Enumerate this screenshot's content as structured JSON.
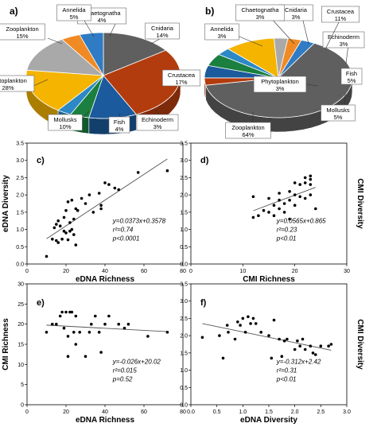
{
  "figure": {
    "colors": {
      "zooplankton": "#5f5f5f",
      "phytoplankton": "#b33c0e",
      "mollusks": "#1b5a9c",
      "fish": "#1a7f3f",
      "echinoderm": "#2c89c5",
      "crustacea": "#f4b400",
      "cnidaria": "#a9a9a9",
      "chaetognatha": "#f08a24",
      "annelida": "#2f7bc4",
      "points": "#000000",
      "fit_line": "#555555"
    }
  },
  "chart_data": [
    {
      "type": "pie",
      "panel": "a)",
      "style": "3d",
      "slices": [
        {
          "key": "zooplankton",
          "label": "Zooplankton",
          "pct_label": "15%",
          "value": 15
        },
        {
          "key": "phytoplankton",
          "label": "Phytoplankton",
          "pct_label": "28%",
          "value": 28
        },
        {
          "key": "mollusks",
          "label": "Mollusks",
          "pct_label": "10%",
          "value": 10
        },
        {
          "key": "fish",
          "label": "Fish",
          "pct_label": "4%",
          "value": 4
        },
        {
          "key": "echinoderm",
          "label": "Echinoderm",
          "pct_label": "3%",
          "value": 3
        },
        {
          "key": "crustacea",
          "label": "Crustacea",
          "pct_label": "17%",
          "value": 17
        },
        {
          "key": "cnidaria",
          "label": "Cnidaria",
          "pct_label": "14%",
          "value": 14
        },
        {
          "key": "chaetognatha",
          "label": "Chaetognatha",
          "pct_label": "4%",
          "value": 4
        },
        {
          "key": "annelida",
          "label": "Annelida",
          "pct_label": "5%",
          "value": 5
        }
      ]
    },
    {
      "type": "pie",
      "panel": "b)",
      "style": "3d",
      "slices": [
        {
          "key": "zooplankton",
          "label": "Zooplankton",
          "pct_label": "64%",
          "value": 64
        },
        {
          "key": "phytoplankton",
          "label": "Phytoplankton",
          "pct_label": "3%",
          "value": 3
        },
        {
          "key": "mollusks",
          "label": "Mollusks",
          "pct_label": "5%",
          "value": 5
        },
        {
          "key": "fish",
          "label": "Fish",
          "pct_label": "5%",
          "value": 5
        },
        {
          "key": "echinoderm",
          "label": "Echinoderm",
          "pct_label": "3%",
          "value": 3
        },
        {
          "key": "crustacea",
          "label": "Crustacea",
          "pct_label": "11%",
          "value": 11
        },
        {
          "key": "cnidaria",
          "label": "Cnidaria",
          "pct_label": "3%",
          "value": 3
        },
        {
          "key": "chaetognatha",
          "label": "Chaetognatha",
          "pct_label": "3%",
          "value": 3
        },
        {
          "key": "annelida",
          "label": "Annelida",
          "pct_label": "3%",
          "value": 3
        }
      ]
    },
    {
      "type": "scatter",
      "panel": "c)",
      "xlabel": "eDNA Richness",
      "ylabel": "eDNA Diversity",
      "ylabel_side": "left",
      "xlim": [
        0,
        80
      ],
      "ylim": [
        0,
        3.5
      ],
      "xticks": [
        "0",
        "20",
        "40",
        "60",
        "80"
      ],
      "yticks": [
        "0.0",
        "0.5",
        "1.0",
        "1.5",
        "2.0",
        "2.5",
        "3.0",
        "3.5"
      ],
      "fit": {
        "slope": 0.0373,
        "intercept": 0.3578,
        "x_range": [
          10,
          72
        ]
      },
      "annotation": [
        "y=0.0373x+0.3578",
        "r²=0.74",
        "p<0.0001"
      ],
      "points": [
        [
          10,
          0.22
        ],
        [
          13,
          0.72
        ],
        [
          14,
          1.05
        ],
        [
          15,
          1.15
        ],
        [
          15,
          0.68
        ],
        [
          16,
          1.25
        ],
        [
          16,
          0.62
        ],
        [
          17,
          1.1
        ],
        [
          18,
          0.72
        ],
        [
          19,
          1.35
        ],
        [
          19,
          0.95
        ],
        [
          20,
          1.55
        ],
        [
          20,
          0.9
        ],
        [
          21,
          0.7
        ],
        [
          21,
          1.8
        ],
        [
          22,
          1.2
        ],
        [
          22,
          0.95
        ],
        [
          23,
          1.85
        ],
        [
          23,
          1.0
        ],
        [
          24,
          0.85
        ],
        [
          24,
          1.3
        ],
        [
          25,
          1.6
        ],
        [
          25,
          0.55
        ],
        [
          26,
          1.55
        ],
        [
          28,
          1.9
        ],
        [
          30,
          1.75
        ],
        [
          32,
          2.0
        ],
        [
          34,
          1.5
        ],
        [
          37,
          2.05
        ],
        [
          38,
          1.7
        ],
        [
          38,
          1.6
        ],
        [
          40,
          2.35
        ],
        [
          42,
          2.3
        ],
        [
          45,
          2.2
        ],
        [
          47,
          2.15
        ],
        [
          57,
          2.65
        ],
        [
          72,
          2.7
        ]
      ]
    },
    {
      "type": "scatter",
      "panel": "d)",
      "xlabel": "CMI Richness",
      "ylabel": "CMI Diversity",
      "ylabel_side": "right",
      "xlim": [
        0,
        30
      ],
      "ylim": [
        0,
        3.5
      ],
      "xticks": [
        "0",
        "10",
        "20",
        "30"
      ],
      "yticks": [
        "0.0",
        "0.5",
        "1.0",
        "1.5",
        "2.0",
        "2.5",
        "3.0",
        "3.5"
      ],
      "fit": {
        "slope": 0.0565,
        "intercept": 0.865,
        "x_range": [
          12,
          24
        ]
      },
      "annotation": [
        "y=0.0565x+0.865",
        "r²=0.23",
        "p<0.01"
      ],
      "points": [
        [
          12,
          1.95
        ],
        [
          12,
          1.35
        ],
        [
          13,
          1.4
        ],
        [
          14,
          1.55
        ],
        [
          15,
          1.9
        ],
        [
          15,
          1.5
        ],
        [
          16,
          1.7
        ],
        [
          16,
          1.4
        ],
        [
          17,
          2.05
        ],
        [
          17,
          1.85
        ],
        [
          17,
          1.6
        ],
        [
          18,
          1.75
        ],
        [
          18,
          1.5
        ],
        [
          19,
          2.1
        ],
        [
          19,
          1.85
        ],
        [
          19,
          1.3
        ],
        [
          20,
          2.35
        ],
        [
          20,
          2.0
        ],
        [
          20,
          1.7
        ],
        [
          21,
          2.3
        ],
        [
          21,
          1.95
        ],
        [
          22,
          2.5
        ],
        [
          22,
          2.35
        ],
        [
          22,
          1.9
        ],
        [
          23,
          2.55
        ],
        [
          23,
          2.45
        ],
        [
          23,
          2.3
        ],
        [
          23,
          2.0
        ],
        [
          24,
          1.6
        ]
      ]
    },
    {
      "type": "scatter",
      "panel": "e)",
      "xlabel": "eDNA Richness",
      "ylabel": "CMI Richness",
      "ylabel_side": "left",
      "xlim": [
        0,
        80
      ],
      "ylim": [
        0,
        30
      ],
      "xticks": [
        "0",
        "20",
        "40",
        "60",
        "80"
      ],
      "yticks": [
        "0",
        "5",
        "10",
        "15",
        "20",
        "25",
        "30"
      ],
      "fit": {
        "slope": -0.026,
        "intercept": 20.02,
        "x_range": [
          10,
          72
        ]
      },
      "annotation": [
        "y=-0.026x+20.02",
        "r²=0.015",
        "p=0.52"
      ],
      "points": [
        [
          10,
          18
        ],
        [
          13,
          20
        ],
        [
          15,
          20
        ],
        [
          17,
          22
        ],
        [
          18,
          23
        ],
        [
          19,
          19
        ],
        [
          20,
          23
        ],
        [
          21,
          17
        ],
        [
          21,
          12
        ],
        [
          22,
          23
        ],
        [
          23,
          23
        ],
        [
          24,
          18
        ],
        [
          25,
          15
        ],
        [
          25,
          22
        ],
        [
          27,
          18
        ],
        [
          30,
          12
        ],
        [
          32,
          18
        ],
        [
          33,
          20
        ],
        [
          35,
          22
        ],
        [
          37,
          18
        ],
        [
          38,
          13
        ],
        [
          40,
          20
        ],
        [
          42,
          22
        ],
        [
          47,
          20
        ],
        [
          50,
          19
        ],
        [
          52,
          20
        ],
        [
          62,
          17
        ],
        [
          72,
          18
        ]
      ]
    },
    {
      "type": "scatter",
      "panel": "f)",
      "xlabel": "eDNA Diversity",
      "ylabel": "CMI Diversity",
      "ylabel_side": "right",
      "xlim": [
        0.0,
        3.0
      ],
      "ylim": [
        0.0,
        3.5
      ],
      "xticks": [
        "0.0",
        "0.5",
        "1.0",
        "1.5",
        "2.0",
        "2.5",
        "3.0"
      ],
      "yticks": [
        "0.0",
        "0.5",
        "1.0",
        "1.5",
        "2.0",
        "2.5",
        "3.0",
        "3.5"
      ],
      "fit": {
        "slope": -0.312,
        "intercept": 2.42,
        "x_range": [
          0.22,
          2.7
        ]
      },
      "annotation": [
        "y=-0.312x+2.42",
        "r²=0.31",
        "p<0.01"
      ],
      "points": [
        [
          0.22,
          1.95
        ],
        [
          0.55,
          2.0
        ],
        [
          0.62,
          1.35
        ],
        [
          0.7,
          2.3
        ],
        [
          0.72,
          2.1
        ],
        [
          0.85,
          1.9
        ],
        [
          0.9,
          2.4
        ],
        [
          0.95,
          2.3
        ],
        [
          1.0,
          2.5
        ],
        [
          1.05,
          2.1
        ],
        [
          1.1,
          2.55
        ],
        [
          1.15,
          2.35
        ],
        [
          1.2,
          2.5
        ],
        [
          1.25,
          2.35
        ],
        [
          1.35,
          2.1
        ],
        [
          1.5,
          2.0
        ],
        [
          1.55,
          1.35
        ],
        [
          1.6,
          2.45
        ],
        [
          1.7,
          1.9
        ],
        [
          1.75,
          1.4
        ],
        [
          1.8,
          1.85
        ],
        [
          1.85,
          1.9
        ],
        [
          2.0,
          1.6
        ],
        [
          2.05,
          1.85
        ],
        [
          2.1,
          1.7
        ],
        [
          2.15,
          1.9
        ],
        [
          2.2,
          1.6
        ],
        [
          2.3,
          1.7
        ],
        [
          2.35,
          1.5
        ],
        [
          2.4,
          1.45
        ],
        [
          2.5,
          1.7
        ],
        [
          2.65,
          1.7
        ],
        [
          2.7,
          1.75
        ]
      ]
    }
  ]
}
